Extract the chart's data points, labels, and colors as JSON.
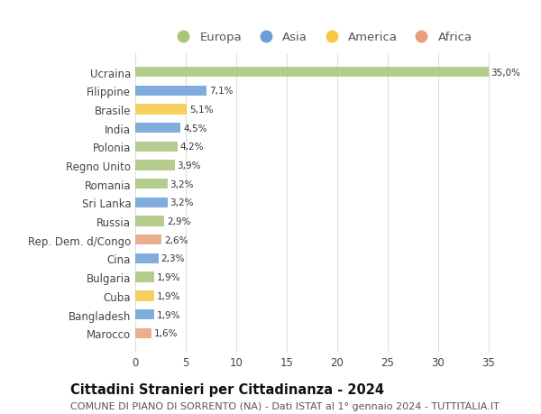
{
  "categories": [
    "Marocco",
    "Bangladesh",
    "Cuba",
    "Bulgaria",
    "Cina",
    "Rep. Dem. d/Congo",
    "Russia",
    "Sri Lanka",
    "Romania",
    "Regno Unito",
    "Polonia",
    "India",
    "Brasile",
    "Filippine",
    "Ucraina"
  ],
  "values": [
    1.6,
    1.9,
    1.9,
    1.9,
    2.3,
    2.6,
    2.9,
    3.2,
    3.2,
    3.9,
    4.2,
    4.5,
    5.1,
    7.1,
    35.0
  ],
  "labels": [
    "1,6%",
    "1,9%",
    "1,9%",
    "1,9%",
    "2,3%",
    "2,6%",
    "2,9%",
    "3,2%",
    "3,2%",
    "3,9%",
    "4,2%",
    "4,5%",
    "5,1%",
    "7,1%",
    "35,0%"
  ],
  "continents": [
    "Africa",
    "Asia",
    "America",
    "Europa",
    "Asia",
    "Africa",
    "Europa",
    "Asia",
    "Europa",
    "Europa",
    "Europa",
    "Asia",
    "America",
    "Asia",
    "Europa"
  ],
  "colors": {
    "Europa": "#a8c47a",
    "Asia": "#6a9fd8",
    "America": "#f5c842",
    "Africa": "#e8a07a"
  },
  "legend_order": [
    "Europa",
    "Asia",
    "America",
    "Africa"
  ],
  "title": "Cittadini Stranieri per Cittadinanza - 2024",
  "subtitle": "COMUNE DI PIANO DI SORRENTO (NA) - Dati ISTAT al 1° gennaio 2024 - TUTTITALIA.IT",
  "xlim": [
    0,
    37
  ],
  "xticks": [
    0,
    5,
    10,
    15,
    20,
    25,
    30,
    35
  ],
  "background_color": "#ffffff",
  "bar_height": 0.55,
  "title_fontsize": 10.5,
  "subtitle_fontsize": 8.0,
  "label_fontsize": 7.5,
  "tick_fontsize": 8.5,
  "legend_fontsize": 9.5
}
